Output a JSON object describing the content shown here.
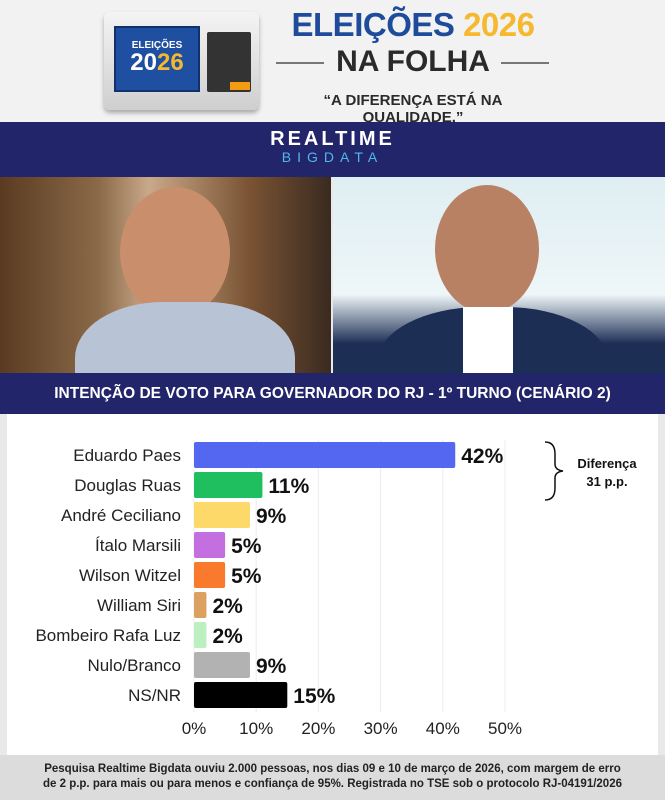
{
  "header": {
    "urna_line1": "ELEIÇÕES",
    "urna_year_a": "20",
    "urna_year_b": "26",
    "title_word": "ELEIÇÕES",
    "title_year": "2026",
    "subtitle": "NA FOLHA",
    "slogan": "“A DIFERENÇA ESTÁ NA QUALIDADE.”"
  },
  "brand": {
    "line1": "REALTIME",
    "line2": "BIGDATA"
  },
  "colors": {
    "navy": "#23256b",
    "title_blue": "#1e4b9a",
    "gold": "#f5b82e"
  },
  "chart_data": {
    "type": "bar",
    "orientation": "horizontal",
    "title": "INTENÇÃO DE VOTO PARA GOVERNADOR DO RJ - 1º TURNO (CENÁRIO 2)",
    "categories": [
      "Eduardo Paes",
      "Douglas Ruas",
      "André Ceciliano",
      "Ítalo Marsili",
      "Wilson Witzel",
      "William Siri",
      "Bombeiro Rafa Luz",
      "Nulo/Branco",
      "NS/NR"
    ],
    "values": [
      42,
      11,
      9,
      5,
      5,
      2,
      2,
      9,
      15
    ],
    "value_labels": [
      "42%",
      "11%",
      "9%",
      "5%",
      "5%",
      "2%",
      "2%",
      "9%",
      "15%"
    ],
    "colors": [
      "#5467f0",
      "#1fbf5f",
      "#fcd968",
      "#c46fe0",
      "#f97a2c",
      "#dca060",
      "#bdf0c0",
      "#b2b2b2",
      "#000000"
    ],
    "xlim": [
      0,
      50
    ],
    "xticks": [
      "0%",
      "10%",
      "20%",
      "30%",
      "40%",
      "50%"
    ],
    "grid": true,
    "annotation": {
      "line1": "Diferença",
      "line2": "31 p.p."
    }
  },
  "footer": {
    "line1": "Pesquisa Realtime Bigdata ouviu 2.000 pessoas, nos dias 09 e 10 de março de 2026, com margem de erro",
    "line2": "de 2 p.p. para mais ou para menos e confiança de 95%. Registrada no TSE sob o protocolo RJ-04191/2026"
  }
}
